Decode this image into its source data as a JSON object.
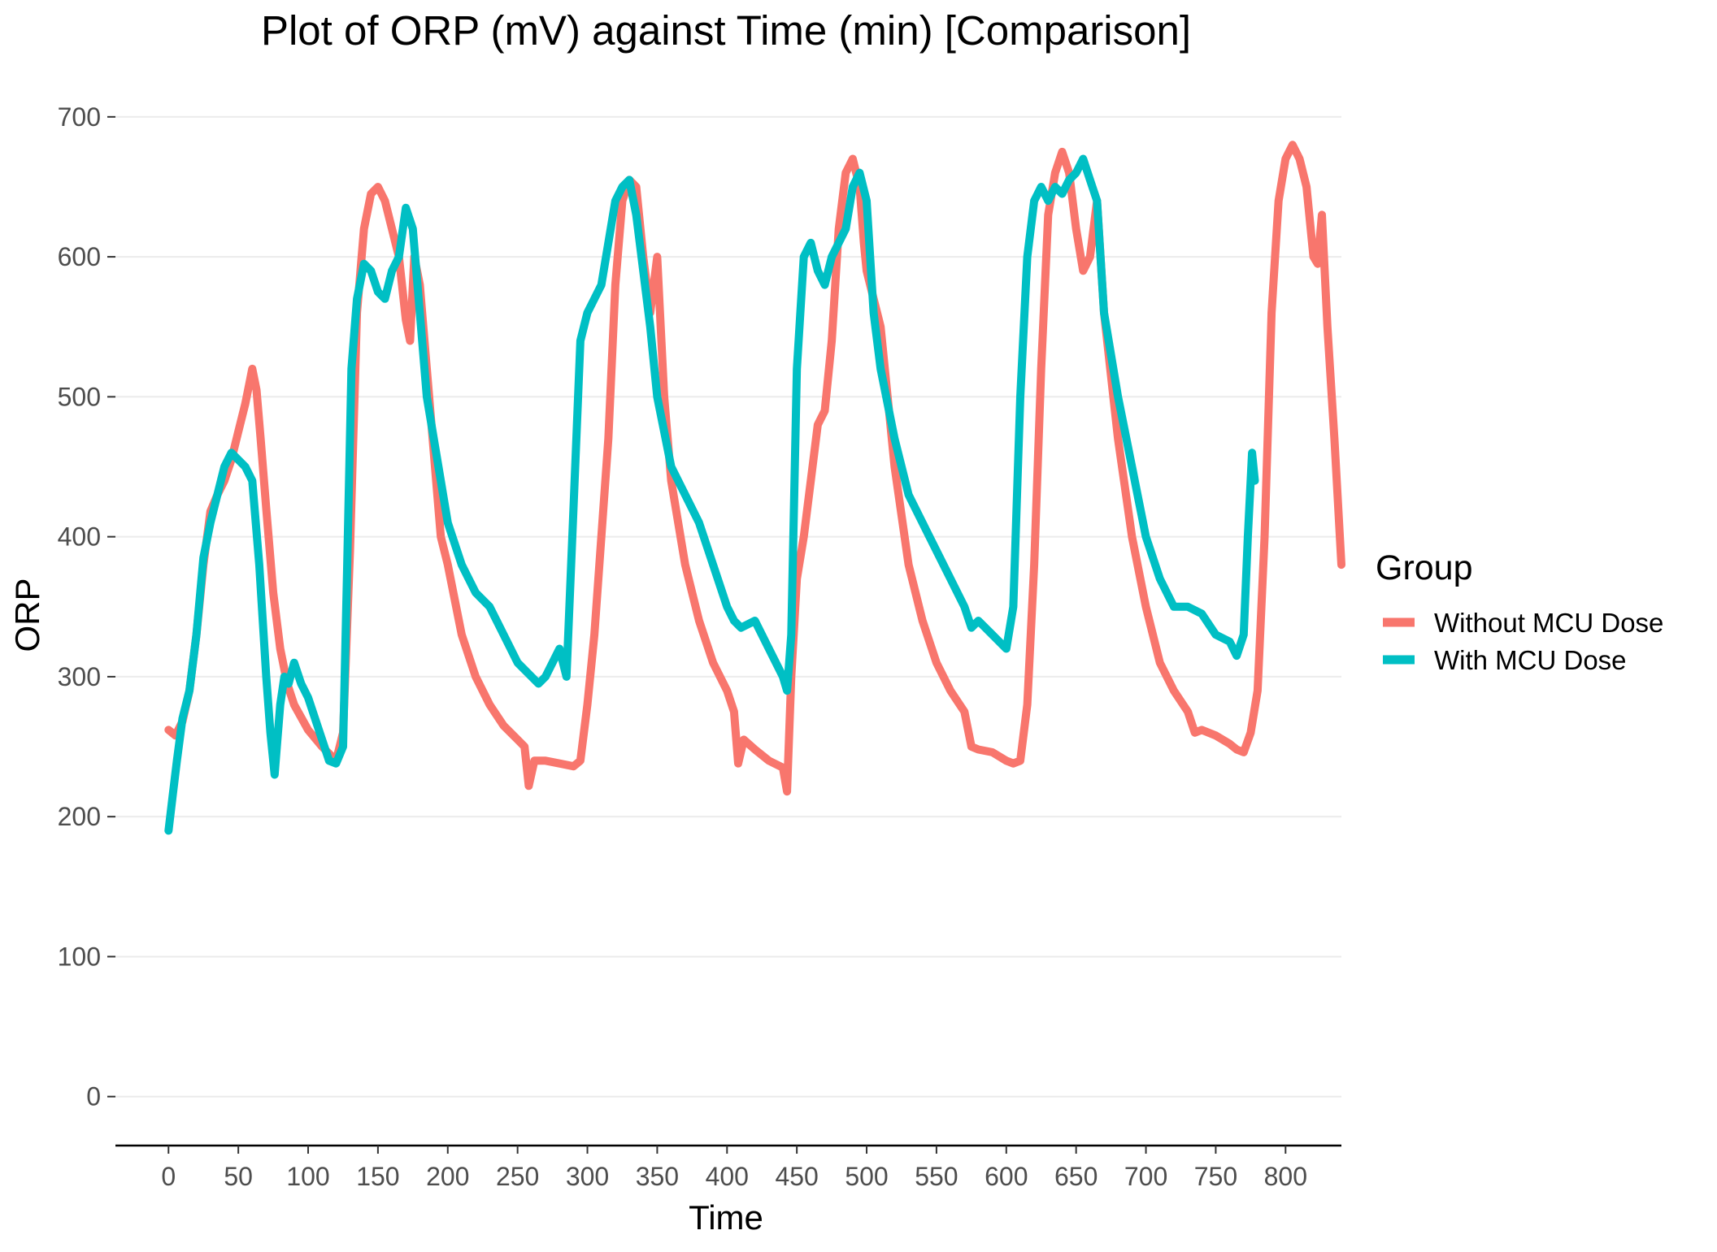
{
  "chart_data": {
    "type": "line",
    "title": "Plot of ORP (mV) against Time (min) [Comparison]",
    "xlabel": "Time",
    "ylabel": "ORP",
    "xlim": [
      -38,
      840
    ],
    "ylim": [
      -35,
      715
    ],
    "x_ticks": [
      0,
      50,
      100,
      150,
      200,
      250,
      300,
      350,
      400,
      450,
      500,
      550,
      600,
      650,
      700,
      750,
      800
    ],
    "y_ticks": [
      0,
      100,
      200,
      300,
      400,
      500,
      600,
      700
    ],
    "grid": true,
    "legend": {
      "title": "Group",
      "position": "right"
    },
    "series": [
      {
        "name": "Without MCU Dose",
        "color": "#F8766D",
        "x": [
          0,
          5,
          10,
          15,
          20,
          25,
          30,
          35,
          40,
          45,
          50,
          55,
          58,
          60,
          63,
          66,
          70,
          75,
          80,
          85,
          90,
          100,
          110,
          120,
          125,
          130,
          135,
          140,
          145,
          150,
          155,
          160,
          165,
          170,
          173,
          176,
          180,
          185,
          190,
          195,
          200,
          210,
          220,
          230,
          240,
          250,
          255,
          258,
          262,
          270,
          280,
          290,
          295,
          300,
          305,
          310,
          315,
          320,
          325,
          330,
          335,
          340,
          345,
          350,
          355,
          360,
          370,
          380,
          390,
          400,
          405,
          408,
          412,
          420,
          430,
          440,
          443,
          446,
          450,
          455,
          460,
          465,
          470,
          475,
          480,
          485,
          490,
          495,
          498,
          500,
          505,
          510,
          520,
          530,
          540,
          550,
          560,
          570,
          575,
          580,
          590,
          600,
          605,
          610,
          615,
          620,
          625,
          630,
          635,
          640,
          645,
          650,
          655,
          660,
          665,
          670,
          680,
          690,
          700,
          710,
          720,
          730,
          735,
          740,
          750,
          760,
          765,
          770,
          775,
          780,
          785,
          790,
          795,
          800,
          805,
          810,
          815,
          820,
          823,
          826,
          830,
          835,
          840
        ],
        "y": [
          262,
          258,
          268,
          290,
          330,
          380,
          418,
          430,
          440,
          455,
          475,
          495,
          510,
          520,
          505,
          470,
          420,
          360,
          320,
          295,
          280,
          262,
          250,
          240,
          260,
          390,
          560,
          620,
          645,
          650,
          640,
          620,
          600,
          555,
          540,
          600,
          580,
          520,
          460,
          400,
          380,
          330,
          300,
          280,
          265,
          255,
          250,
          222,
          240,
          240,
          238,
          236,
          240,
          280,
          330,
          400,
          470,
          580,
          640,
          655,
          650,
          600,
          560,
          600,
          500,
          440,
          380,
          340,
          310,
          290,
          275,
          238,
          255,
          248,
          240,
          235,
          218,
          300,
          370,
          400,
          440,
          480,
          490,
          540,
          620,
          660,
          670,
          650,
          610,
          590,
          570,
          550,
          450,
          380,
          340,
          310,
          290,
          275,
          250,
          248,
          246,
          240,
          238,
          240,
          280,
          380,
          520,
          630,
          660,
          675,
          660,
          620,
          590,
          600,
          640,
          560,
          470,
          400,
          350,
          310,
          290,
          275,
          260,
          262,
          258,
          252,
          248,
          246,
          260,
          290,
          400,
          560,
          640,
          670,
          680,
          670,
          650,
          600,
          595,
          630,
          550,
          470,
          380
        ]
      },
      {
        "name": "With MCU Dose",
        "color": "#00BFC4",
        "x": [
          0,
          3,
          6,
          10,
          15,
          20,
          25,
          30,
          35,
          40,
          45,
          50,
          55,
          60,
          65,
          70,
          73,
          76,
          78,
          80,
          83,
          86,
          90,
          95,
          100,
          105,
          110,
          115,
          120,
          125,
          128,
          131,
          135,
          140,
          145,
          150,
          155,
          160,
          165,
          170,
          175,
          180,
          185,
          190,
          195,
          200,
          210,
          220,
          230,
          240,
          250,
          260,
          265,
          270,
          280,
          285,
          290,
          295,
          300,
          305,
          310,
          315,
          320,
          325,
          330,
          335,
          340,
          345,
          350,
          360,
          370,
          380,
          390,
          400,
          405,
          410,
          420,
          430,
          440,
          443,
          446,
          450,
          455,
          460,
          465,
          470,
          475,
          480,
          485,
          490,
          495,
          500,
          505,
          510,
          520,
          530,
          540,
          550,
          560,
          570,
          575,
          580,
          590,
          600,
          605,
          610,
          615,
          620,
          625,
          630,
          635,
          640,
          645,
          650,
          655,
          660,
          665,
          670,
          680,
          690,
          700,
          710,
          720,
          730,
          740,
          750,
          760,
          765,
          770,
          773,
          776,
          778
        ],
        "y": [
          190,
          215,
          240,
          270,
          290,
          330,
          385,
          410,
          430,
          450,
          460,
          455,
          450,
          440,
          380,
          300,
          260,
          230,
          255,
          280,
          300,
          295,
          310,
          295,
          285,
          270,
          255,
          240,
          238,
          250,
          380,
          520,
          570,
          595,
          590,
          575,
          570,
          590,
          600,
          635,
          620,
          560,
          500,
          470,
          440,
          410,
          380,
          360,
          350,
          330,
          310,
          300,
          295,
          300,
          320,
          300,
          420,
          540,
          560,
          570,
          580,
          610,
          640,
          650,
          655,
          630,
          590,
          550,
          500,
          450,
          430,
          410,
          380,
          350,
          340,
          335,
          340,
          320,
          300,
          290,
          330,
          520,
          600,
          610,
          590,
          580,
          600,
          610,
          620,
          650,
          660,
          640,
          560,
          520,
          470,
          430,
          410,
          390,
          370,
          350,
          335,
          340,
          330,
          320,
          350,
          500,
          600,
          640,
          650,
          640,
          650,
          645,
          655,
          660,
          670,
          655,
          640,
          560,
          500,
          450,
          400,
          370,
          350,
          350,
          345,
          330,
          325,
          315,
          330,
          400,
          460,
          440
        ]
      }
    ]
  }
}
